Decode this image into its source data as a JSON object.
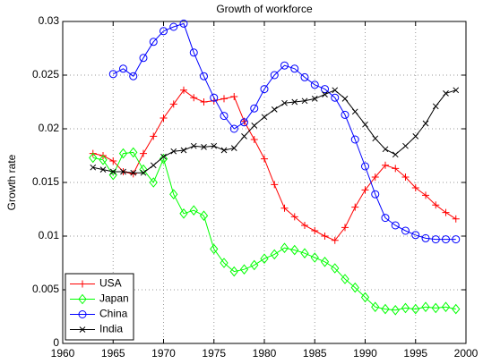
{
  "chart_data": {
    "type": "line",
    "title": "Growth of workforce",
    "y_label": "Growth rate",
    "x": [
      1963,
      1964,
      1965,
      1966,
      1967,
      1968,
      1969,
      1970,
      1971,
      1972,
      1973,
      1974,
      1975,
      1976,
      1977,
      1978,
      1979,
      1980,
      1981,
      1982,
      1983,
      1984,
      1985,
      1986,
      1987,
      1988,
      1989,
      1990,
      1991,
      1992,
      1993,
      1994,
      1995,
      1996,
      1997,
      1998,
      1999
    ],
    "series": [
      {
        "name": "USA",
        "color": "#ff0000",
        "marker": "plus",
        "values": [
          0.0177,
          0.0175,
          0.017,
          0.016,
          0.0158,
          0.0177,
          0.0193,
          0.021,
          0.0223,
          0.0236,
          0.0229,
          0.0225,
          0.0226,
          0.0228,
          0.023,
          0.0207,
          0.019,
          0.0172,
          0.0148,
          0.0126,
          0.0118,
          0.011,
          0.0105,
          0.01,
          0.0096,
          0.0108,
          0.0127,
          0.0143,
          0.0155,
          0.0166,
          0.0163,
          0.0155,
          0.0145,
          0.0138,
          0.0129,
          0.0122,
          0.0116
        ]
      },
      {
        "name": "Japan",
        "color": "#00ff00",
        "marker": "diamond",
        "values": [
          0.0173,
          0.0171,
          0.0157,
          0.0177,
          0.0178,
          0.0162,
          0.015,
          0.0172,
          0.0139,
          0.0121,
          0.0124,
          0.0119,
          0.0088,
          0.0075,
          0.0067,
          0.0069,
          0.0073,
          0.0079,
          0.0083,
          0.0089,
          0.0087,
          0.0084,
          0.008,
          0.0076,
          0.007,
          0.006,
          0.0052,
          0.0043,
          0.0034,
          0.0032,
          0.0031,
          0.0033,
          0.0032,
          0.0034,
          0.0033,
          0.0034,
          0.0032
        ]
      },
      {
        "name": "China",
        "color": "#0000ff",
        "marker": "circle",
        "values": [
          null,
          null,
          0.0251,
          0.0256,
          0.0249,
          0.0266,
          0.0281,
          0.0291,
          0.0295,
          0.0298,
          0.0271,
          0.0249,
          0.0229,
          0.0212,
          0.02,
          0.0206,
          0.0219,
          0.0237,
          0.025,
          0.0259,
          0.0256,
          0.0248,
          0.0241,
          0.0237,
          0.0229,
          0.0213,
          0.019,
          0.0165,
          0.0139,
          0.0117,
          0.011,
          0.0105,
          0.0101,
          0.0098,
          0.0097,
          0.0097,
          0.0097
        ]
      },
      {
        "name": "India",
        "color": "#000000",
        "marker": "x",
        "values": [
          0.0164,
          0.0162,
          0.016,
          0.016,
          0.0159,
          0.0159,
          0.0166,
          0.0174,
          0.0179,
          0.018,
          0.0184,
          0.0183,
          0.0184,
          0.018,
          0.0182,
          0.0193,
          0.0203,
          0.0211,
          0.0218,
          0.0224,
          0.0225,
          0.0226,
          0.0228,
          0.0232,
          0.0236,
          0.0228,
          0.0216,
          0.0204,
          0.0191,
          0.0181,
          0.0176,
          0.0184,
          0.0193,
          0.0205,
          0.0221,
          0.0233,
          0.0236
        ]
      }
    ],
    "xlim": [
      1960,
      2000
    ],
    "xticks": [
      1960,
      1965,
      1970,
      1975,
      1980,
      1985,
      1990,
      1995,
      2000
    ],
    "ylim": [
      0,
      0.03
    ],
    "yticks": [
      0,
      0.005,
      0.01,
      0.015,
      0.02,
      0.025,
      0.03
    ],
    "grid": true,
    "legend": "lower left"
  }
}
